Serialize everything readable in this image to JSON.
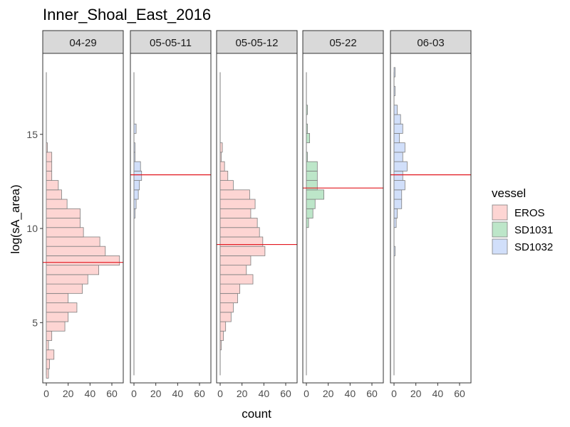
{
  "chart_data": {
    "type": "bar",
    "orientation": "horizontal",
    "title": "Inner_Shoal_East_2016",
    "xlabel": "count",
    "ylabel": "log(sA_area)",
    "xlim": [
      0,
      70
    ],
    "ylim": [
      1.8,
      19.3
    ],
    "x_ticks": [
      0,
      20,
      40,
      60
    ],
    "y_ticks": [
      5,
      10,
      15
    ],
    "bin_width": 0.5,
    "grid": false,
    "legend": {
      "title": "vessel",
      "position": "right",
      "entries": [
        {
          "name": "EROS",
          "fill": "#FDD5D3",
          "stroke": "#7F7F7F"
        },
        {
          "name": "SD1031",
          "fill": "#BDE6C9",
          "stroke": "#7F7F7F"
        },
        {
          "name": "SD1032",
          "fill": "#D1DFFA",
          "stroke": "#7F7F7F"
        }
      ]
    },
    "panels": [
      {
        "label": "04-29",
        "vessel": "EROS",
        "mean_line": 8.2,
        "range": [
          2.2,
          18.3
        ],
        "bins": [
          [
            2.3,
            2
          ],
          [
            2.8,
            3
          ],
          [
            3.3,
            7
          ],
          [
            3.8,
            2
          ],
          [
            4.3,
            5
          ],
          [
            4.8,
            17
          ],
          [
            5.3,
            20
          ],
          [
            5.8,
            28
          ],
          [
            6.3,
            20
          ],
          [
            6.8,
            33
          ],
          [
            7.3,
            38
          ],
          [
            7.8,
            48
          ],
          [
            8.3,
            67
          ],
          [
            8.8,
            54
          ],
          [
            9.3,
            49
          ],
          [
            9.8,
            34
          ],
          [
            10.3,
            31
          ],
          [
            10.8,
            31
          ],
          [
            11.3,
            19
          ],
          [
            11.8,
            14
          ],
          [
            12.3,
            11
          ],
          [
            12.8,
            5
          ],
          [
            13.3,
            5
          ],
          [
            13.8,
            5
          ],
          [
            14.3,
            1
          ]
        ]
      },
      {
        "label": "05-05-11",
        "vessel": "SD1032",
        "mean_line": 12.85,
        "range": [
          2.2,
          18.3
        ],
        "bins": [
          [
            10.8,
            1
          ],
          [
            11.3,
            2
          ],
          [
            11.8,
            4
          ],
          [
            12.3,
            5
          ],
          [
            12.8,
            7
          ],
          [
            13.3,
            6
          ],
          [
            13.8,
            1
          ],
          [
            14.3,
            1
          ],
          [
            15.3,
            2
          ]
        ]
      },
      {
        "label": "05-05-12",
        "vessel": "EROS",
        "mean_line": 9.15,
        "range": [
          2.2,
          18.3
        ],
        "bins": [
          [
            3.8,
            1
          ],
          [
            4.3,
            3
          ],
          [
            4.8,
            5
          ],
          [
            5.3,
            10
          ],
          [
            5.8,
            12
          ],
          [
            6.3,
            16
          ],
          [
            6.8,
            18
          ],
          [
            7.3,
            30
          ],
          [
            7.8,
            24
          ],
          [
            8.3,
            28
          ],
          [
            8.8,
            41
          ],
          [
            9.3,
            39
          ],
          [
            9.8,
            36
          ],
          [
            10.3,
            34
          ],
          [
            10.8,
            28
          ],
          [
            11.3,
            32
          ],
          [
            11.8,
            27
          ],
          [
            12.3,
            12
          ],
          [
            12.8,
            7
          ],
          [
            13.3,
            4
          ],
          [
            13.8,
            1
          ],
          [
            14.3,
            2
          ]
        ]
      },
      {
        "label": "05-22",
        "vessel": "SD1031",
        "mean_line": 12.15,
        "range": [
          2.2,
          18.3
        ],
        "bins": [
          [
            10.3,
            2
          ],
          [
            10.8,
            6
          ],
          [
            11.3,
            8
          ],
          [
            11.8,
            16
          ],
          [
            12.3,
            10
          ],
          [
            12.8,
            10
          ],
          [
            13.3,
            10
          ],
          [
            13.8,
            1
          ],
          [
            14.8,
            3
          ],
          [
            15.3,
            1
          ],
          [
            16.3,
            1
          ]
        ]
      },
      {
        "label": "06-03",
        "vessel": "SD1032",
        "mean_line": 12.85,
        "range": [
          2.2,
          18.3
        ],
        "bins": [
          [
            8.8,
            1
          ],
          [
            10.3,
            2
          ],
          [
            10.8,
            3
          ],
          [
            11.3,
            7
          ],
          [
            11.8,
            7
          ],
          [
            12.3,
            10
          ],
          [
            12.8,
            8
          ],
          [
            13.3,
            12
          ],
          [
            13.8,
            8
          ],
          [
            14.3,
            10
          ],
          [
            14.8,
            5
          ],
          [
            15.3,
            8
          ],
          [
            15.8,
            6
          ],
          [
            16.3,
            3
          ],
          [
            17.3,
            1
          ],
          [
            18.3,
            1
          ]
        ]
      }
    ]
  }
}
